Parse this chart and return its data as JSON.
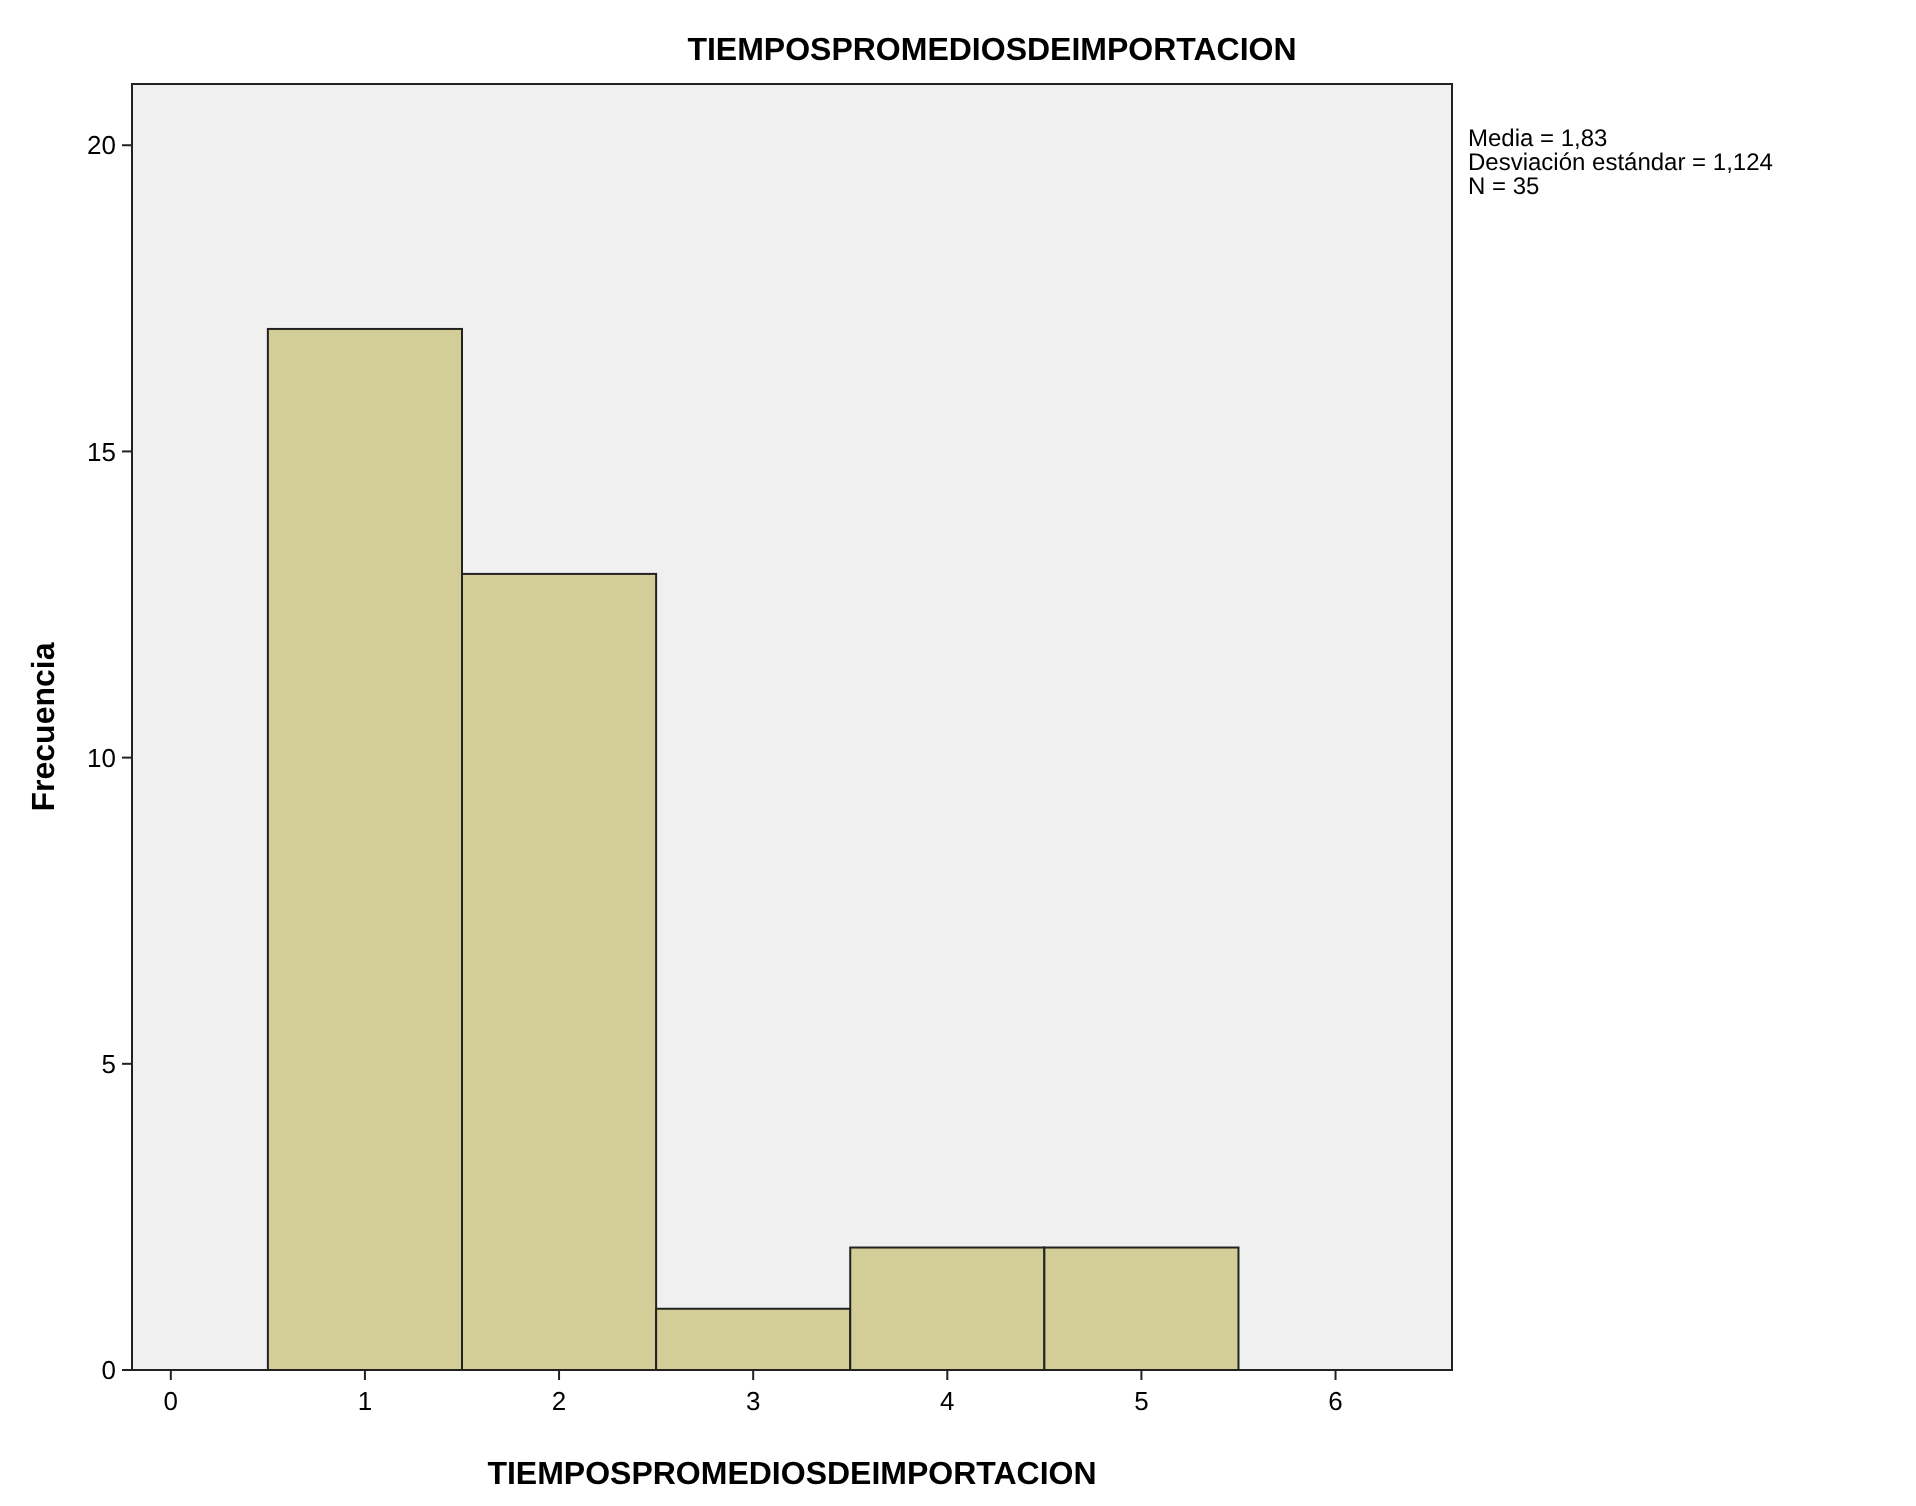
{
  "chart_data": {
    "type": "histogram",
    "title": "TIEMPOSPROMEDIOSDEIMPORTACION",
    "xlabel": "TIEMPOSPROMEDIOSDEIMPORTACION",
    "ylabel": "Frecuencia",
    "bins": [
      0.5,
      1.5,
      2.5,
      3.5,
      4.5,
      5.5
    ],
    "values": [
      17,
      13,
      1,
      2,
      2
    ],
    "color": "#d3ce97",
    "xlim": [
      -0.2,
      6.6
    ],
    "xticks": [
      0,
      1,
      2,
      3,
      4,
      5,
      6
    ],
    "ylim": [
      0,
      21
    ],
    "yticks": [
      0,
      5,
      10,
      15,
      20
    ],
    "grid": false,
    "annotations": [
      "Media = 1,83",
      "Desviación estándar = 1,124",
      "N = 35"
    ]
  }
}
